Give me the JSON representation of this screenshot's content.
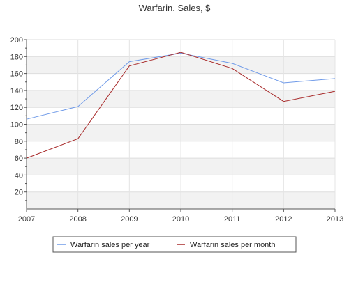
{
  "chart_data": {
    "type": "line",
    "title": "Warfarin. Sales, $",
    "x": [
      "2007",
      "2008",
      "2009",
      "2010",
      "2011",
      "2012",
      "2013"
    ],
    "series": [
      {
        "name": "Warfarin sales per year",
        "color": "#6f9ae8",
        "values": [
          106,
          121,
          174,
          184,
          172,
          149,
          154
        ]
      },
      {
        "name": "Warfarin sales per month",
        "color": "#a82a2a",
        "values": [
          60,
          83,
          169,
          185,
          166,
          127,
          139
        ]
      }
    ],
    "ylim": [
      0,
      200
    ],
    "yticks": [
      20,
      40,
      60,
      80,
      100,
      120,
      140,
      160,
      180,
      200
    ],
    "grid": true,
    "legend": "bottom-center"
  }
}
